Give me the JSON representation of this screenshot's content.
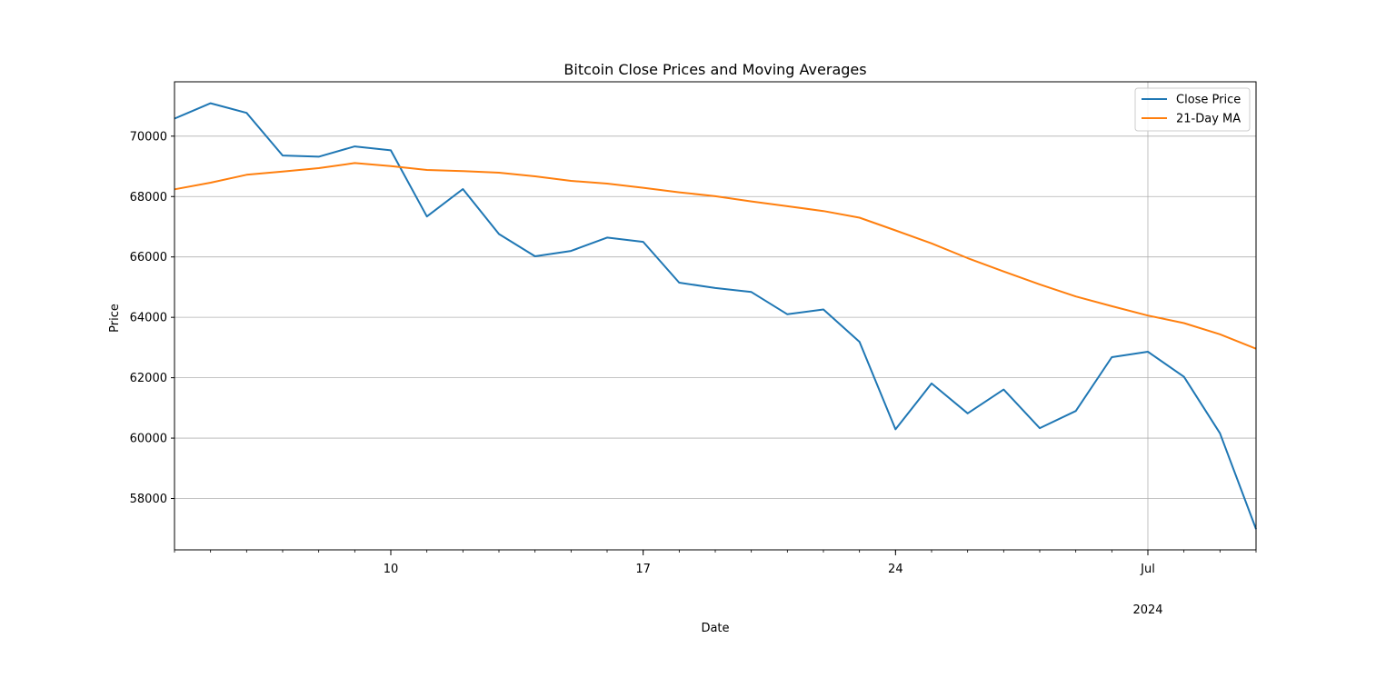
{
  "chart_data": {
    "type": "line",
    "title": "Bitcoin Close Prices and Moving Averages",
    "xlabel": "Date",
    "ylabel": "Price",
    "x": [
      "2024-06-04",
      "2024-06-05",
      "2024-06-06",
      "2024-06-07",
      "2024-06-08",
      "2024-06-09",
      "2024-06-10",
      "2024-06-11",
      "2024-06-12",
      "2024-06-13",
      "2024-06-14",
      "2024-06-15",
      "2024-06-16",
      "2024-06-17",
      "2024-06-18",
      "2024-06-19",
      "2024-06-20",
      "2024-06-21",
      "2024-06-22",
      "2024-06-23",
      "2024-06-24",
      "2024-06-25",
      "2024-06-26",
      "2024-06-27",
      "2024-06-28",
      "2024-06-29",
      "2024-06-30",
      "2024-07-01",
      "2024-07-02",
      "2024-07-03",
      "2024-07-04"
    ],
    "xlim": [
      "2024-06-04",
      "2024-07-04"
    ],
    "ylim": [
      56300,
      71800
    ],
    "x_ticks": [
      {
        "date": "2024-06-10",
        "label": "10"
      },
      {
        "date": "2024-06-17",
        "label": "17"
      },
      {
        "date": "2024-06-24",
        "label": "24"
      },
      {
        "date": "2024-07-01",
        "label": "Jul",
        "sublabel": "2024"
      }
    ],
    "y_ticks": [
      58000,
      60000,
      62000,
      64000,
      66000,
      68000,
      70000
    ],
    "grid": true,
    "legend_position": "top-right",
    "series": [
      {
        "name": "Close Price",
        "color": "#1f77b4",
        "values": [
          70580,
          71090,
          70770,
          69360,
          69320,
          69660,
          69530,
          67340,
          68250,
          66760,
          66020,
          66200,
          66640,
          66500,
          65150,
          64970,
          64840,
          64100,
          64260,
          63190,
          60290,
          61810,
          60820,
          61610,
          60330,
          60900,
          62680,
          62860,
          62030,
          60160,
          56990
        ]
      },
      {
        "name": "21-Day MA",
        "color": "#ff7f0e",
        "values": [
          68240,
          68460,
          68720,
          68830,
          68940,
          69110,
          69010,
          68880,
          68840,
          68790,
          68670,
          68520,
          68430,
          68290,
          68140,
          68010,
          67840,
          67680,
          67520,
          67300,
          66880,
          66450,
          65960,
          65520,
          65090,
          64690,
          64370,
          64060,
          63810,
          63440,
          62960
        ]
      }
    ]
  }
}
